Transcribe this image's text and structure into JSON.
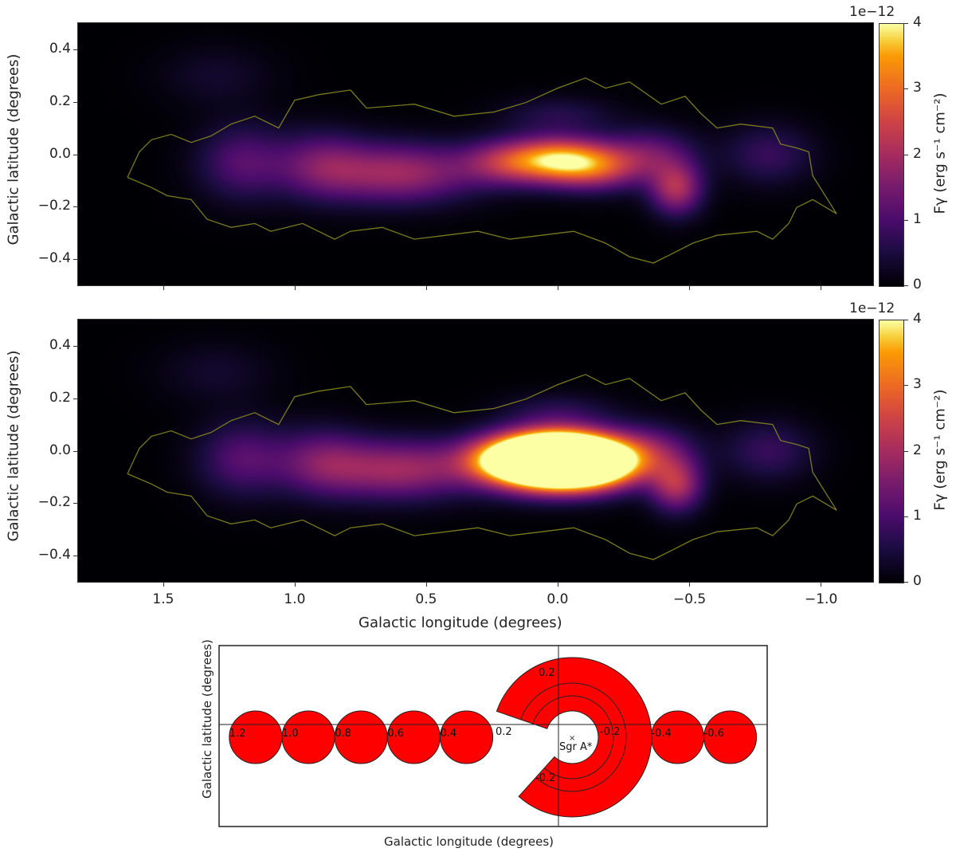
{
  "chart_data": [
    {
      "type": "heatmap",
      "panel": "top",
      "xlabel": "",
      "ylabel": "Galactic latitude (degrees)",
      "xlim": [
        1.824,
        -1.2
      ],
      "ylim": [
        -0.5,
        0.5
      ],
      "xticks": [
        1.5,
        1.0,
        0.5,
        0.0,
        -0.5,
        -1.0
      ],
      "yticks": [
        "0.4",
        "0.2",
        "0.0",
        "−0.2",
        "−0.4"
      ],
      "ytick_values": [
        0.4,
        0.2,
        0.0,
        -0.2,
        -0.4
      ],
      "colormap": "inferno",
      "colorbar": {
        "label": "Fγ (erg s⁻¹ cm⁻²)",
        "offset_text": "1e−12",
        "range": [
          0,
          4
        ],
        "ticks": [
          "0",
          "1",
          "2",
          "3",
          "4"
        ]
      },
      "emission_components": [
        {
          "l": 0.0,
          "b": -0.02,
          "amp": 3.1,
          "sl": 0.13,
          "sb": 0.06
        },
        {
          "l": 0.2,
          "b": -0.03,
          "amp": 1.6,
          "sl": 0.12,
          "sb": 0.06
        },
        {
          "l": -0.15,
          "b": -0.05,
          "amp": 1.8,
          "sl": 0.12,
          "sb": 0.06
        },
        {
          "l": -0.45,
          "b": -0.13,
          "amp": 2.0,
          "sl": 0.07,
          "sb": 0.07
        },
        {
          "l": -0.35,
          "b": 0.0,
          "amp": 1.2,
          "sl": 0.12,
          "sb": 0.07
        },
        {
          "l": 0.6,
          "b": -0.07,
          "amp": 1.9,
          "sl": 0.2,
          "sb": 0.08
        },
        {
          "l": 0.9,
          "b": -0.04,
          "amp": 1.2,
          "sl": 0.12,
          "sb": 0.09
        },
        {
          "l": 1.2,
          "b": -0.03,
          "amp": 1.1,
          "sl": 0.12,
          "sb": 0.1
        },
        {
          "l": -0.8,
          "b": 0.0,
          "amp": 0.8,
          "sl": 0.12,
          "sb": 0.08
        },
        {
          "l": 0.0,
          "b": 0.15,
          "amp": 0.6,
          "sl": 0.15,
          "sb": 0.05
        },
        {
          "l": 1.3,
          "b": 0.3,
          "amp": 0.35,
          "sl": 0.15,
          "sb": 0.08
        }
      ]
    },
    {
      "type": "heatmap",
      "panel": "middle",
      "xlabel": "Galactic longitude (degrees)",
      "ylabel": "Galactic latitude (degrees)",
      "xlim": [
        1.824,
        -1.2
      ],
      "ylim": [
        -0.5,
        0.5
      ],
      "xticks": [
        "1.5",
        "1.0",
        "0.5",
        "0.0",
        "−0.5",
        "−1.0"
      ],
      "xtick_values": [
        1.5,
        1.0,
        0.5,
        0.0,
        -0.5,
        -1.0
      ],
      "yticks": [
        "0.4",
        "0.2",
        "0.0",
        "−0.2",
        "−0.4"
      ],
      "ytick_values": [
        0.4,
        0.2,
        0.0,
        -0.2,
        -0.4
      ],
      "colormap": "inferno",
      "colorbar": {
        "label": "Fγ (erg s⁻¹ cm⁻²)",
        "offset_text": "1e−12",
        "range": [
          0,
          4
        ],
        "ticks": [
          "0",
          "1",
          "2",
          "3",
          "4"
        ]
      },
      "central_boost": {
        "l": 0.0,
        "b": -0.04,
        "amp": 9.0,
        "sl": 0.17,
        "sb": 0.07
      }
    },
    {
      "type": "diagram",
      "panel": "bottom",
      "xlabel": "Galactic longitude (degrees)",
      "ylabel": "Galactic latitude (degrees)",
      "circle_regions": [
        {
          "label": "1.2",
          "l": 1.2
        },
        {
          "label": "1.0",
          "l": 1.0
        },
        {
          "label": "0.8",
          "l": 0.8
        },
        {
          "label": "0.6",
          "l": 0.6
        },
        {
          "label": "0.4",
          "l": 0.4
        },
        {
          "label": "-0.4",
          "l": -0.4
        },
        {
          "label": "-0.6",
          "l": -0.6
        }
      ],
      "annulus_labels": [
        "0.2",
        "-0.2",
        "0.2",
        "-0.2"
      ],
      "source_label": "Sgr A*",
      "fill_color": "#ff0000"
    }
  ],
  "contour": [
    [
      1.636,
      -0.088
    ],
    [
      1.591,
      0.009
    ],
    [
      1.545,
      0.055
    ],
    [
      1.47,
      0.076
    ],
    [
      1.394,
      0.045
    ],
    [
      1.318,
      0.07
    ],
    [
      1.242,
      0.115
    ],
    [
      1.152,
      0.145
    ],
    [
      1.061,
      0.1
    ],
    [
      1.0,
      0.206
    ],
    [
      0.909,
      0.227
    ],
    [
      0.788,
      0.245
    ],
    [
      0.727,
      0.176
    ],
    [
      0.545,
      0.191
    ],
    [
      0.394,
      0.145
    ],
    [
      0.242,
      0.161
    ],
    [
      0.121,
      0.197
    ],
    [
      0.0,
      0.252
    ],
    [
      -0.106,
      0.291
    ],
    [
      -0.182,
      0.252
    ],
    [
      -0.273,
      0.276
    ],
    [
      -0.394,
      0.191
    ],
    [
      -0.485,
      0.221
    ],
    [
      -0.545,
      0.155
    ],
    [
      -0.606,
      0.1
    ],
    [
      -0.697,
      0.115
    ],
    [
      -0.818,
      0.1
    ],
    [
      -0.848,
      0.039
    ],
    [
      -0.909,
      0.024
    ],
    [
      -0.955,
      0.009
    ],
    [
      -0.97,
      -0.082
    ],
    [
      -1.061,
      -0.227
    ],
    [
      -0.97,
      -0.173
    ],
    [
      -0.909,
      -0.203
    ],
    [
      -0.879,
      -0.264
    ],
    [
      -0.818,
      -0.324
    ],
    [
      -0.758,
      -0.294
    ],
    [
      -0.606,
      -0.309
    ],
    [
      -0.515,
      -0.339
    ],
    [
      -0.424,
      -0.385
    ],
    [
      -0.364,
      -0.415
    ],
    [
      -0.273,
      -0.391
    ],
    [
      -0.182,
      -0.339
    ],
    [
      -0.061,
      -0.294
    ],
    [
      0.061,
      -0.309
    ],
    [
      0.182,
      -0.324
    ],
    [
      0.303,
      -0.294
    ],
    [
      0.424,
      -0.309
    ],
    [
      0.545,
      -0.324
    ],
    [
      0.667,
      -0.279
    ],
    [
      0.788,
      -0.294
    ],
    [
      0.848,
      -0.324
    ],
    [
      0.97,
      -0.264
    ],
    [
      1.091,
      -0.294
    ],
    [
      1.152,
      -0.264
    ],
    [
      1.242,
      -0.279
    ],
    [
      1.333,
      -0.248
    ],
    [
      1.394,
      -0.173
    ],
    [
      1.485,
      -0.158
    ],
    [
      1.545,
      -0.127
    ],
    [
      1.636,
      -0.088
    ]
  ],
  "colors": {
    "contour": "#7a7a1e",
    "region": "#ff0000"
  }
}
